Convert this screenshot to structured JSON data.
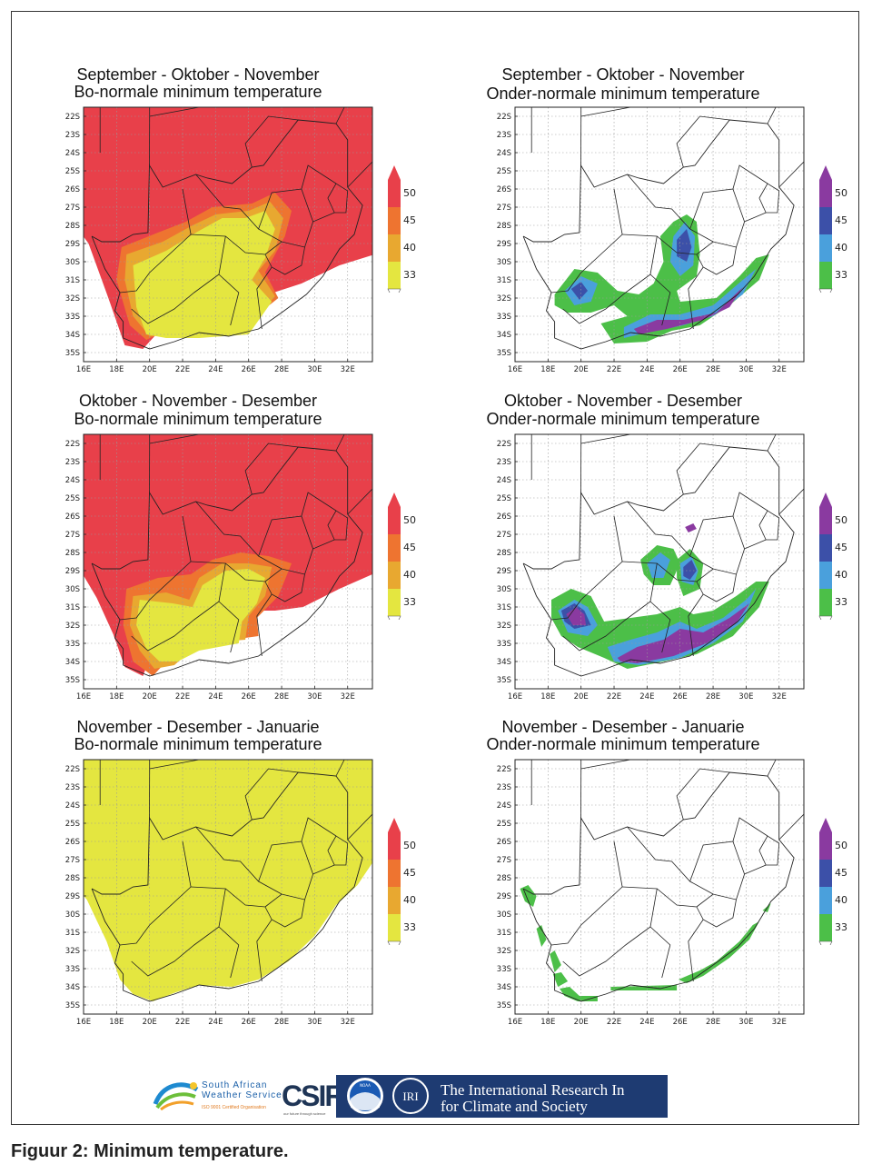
{
  "figure_caption": "Figuur 2: Minimum temperature.",
  "logos": {
    "saws_line1": "South African",
    "saws_line2": "Weather Service",
    "saws_cert": "ISO 9001 Certified Organisation",
    "csir": "CSIR",
    "csir_sub": "our future through science",
    "noaa": "NOAA",
    "iri": "IRI",
    "iri_line1": "The International Research In",
    "iri_line2": "for Climate and Society"
  },
  "chart_data": [
    {
      "type": "heatmap",
      "title": "September - Oktober - November",
      "subtitle": "Bo-normale minimum temperature",
      "category": "above",
      "palette": "warm",
      "fill": "above1",
      "x_ticks": [
        "16E",
        "18E",
        "20E",
        "22E",
        "24E",
        "26E",
        "28E",
        "30E",
        "32E"
      ],
      "y_ticks": [
        "22S",
        "23S",
        "24S",
        "25S",
        "26S",
        "27S",
        "28S",
        "29S",
        "30S",
        "31S",
        "32S",
        "33S",
        "34S",
        "35S"
      ],
      "xlim": [
        16,
        33.5
      ],
      "ylim": [
        -35.5,
        -21.5
      ],
      "legend": [
        "33",
        "40",
        "45",
        "50"
      ],
      "legend_colors": [
        "#e4e640",
        "#e8a830",
        "#ee7430",
        "#e8404a"
      ]
    },
    {
      "type": "heatmap",
      "title": "September - Oktober - November",
      "subtitle": "Onder-normale minimum temperature",
      "category": "below",
      "palette": "cool",
      "fill": "below1",
      "x_ticks": [
        "16E",
        "18E",
        "20E",
        "22E",
        "24E",
        "26E",
        "28E",
        "30E",
        "32E"
      ],
      "y_ticks": [
        "22S",
        "23S",
        "24S",
        "25S",
        "26S",
        "27S",
        "28S",
        "29S",
        "30S",
        "31S",
        "32S",
        "33S",
        "34S",
        "35S"
      ],
      "xlim": [
        16,
        33.5
      ],
      "ylim": [
        -35.5,
        -21.5
      ],
      "legend": [
        "33",
        "40",
        "45",
        "50"
      ],
      "legend_colors": [
        "#4cbf48",
        "#4aa0dc",
        "#3c50a8",
        "#8a3aa0"
      ]
    },
    {
      "type": "heatmap",
      "title": "Oktober - November - Desember",
      "subtitle": "Bo-normale minimum temperature",
      "category": "above",
      "palette": "warm",
      "fill": "above2",
      "x_ticks": [
        "16E",
        "18E",
        "20E",
        "22E",
        "24E",
        "26E",
        "28E",
        "30E",
        "32E"
      ],
      "y_ticks": [
        "22S",
        "23S",
        "24S",
        "25S",
        "26S",
        "27S",
        "28S",
        "29S",
        "30S",
        "31S",
        "32S",
        "33S",
        "34S",
        "35S"
      ],
      "xlim": [
        16,
        33.5
      ],
      "ylim": [
        -35.5,
        -21.5
      ],
      "legend": [
        "33",
        "40",
        "45",
        "50"
      ],
      "legend_colors": [
        "#e4e640",
        "#e8a830",
        "#ee7430",
        "#e8404a"
      ]
    },
    {
      "type": "heatmap",
      "title": "Oktober - November - Desember",
      "subtitle": "Onder-normale minimum temperature",
      "category": "below",
      "palette": "cool",
      "fill": "below2",
      "x_ticks": [
        "16E",
        "18E",
        "20E",
        "22E",
        "24E",
        "26E",
        "28E",
        "30E",
        "32E"
      ],
      "y_ticks": [
        "22S",
        "23S",
        "24S",
        "25S",
        "26S",
        "27S",
        "28S",
        "29S",
        "30S",
        "31S",
        "32S",
        "33S",
        "34S",
        "35S"
      ],
      "xlim": [
        16,
        33.5
      ],
      "ylim": [
        -35.5,
        -21.5
      ],
      "legend": [
        "33",
        "40",
        "45",
        "50"
      ],
      "legend_colors": [
        "#4cbf48",
        "#4aa0dc",
        "#3c50a8",
        "#8a3aa0"
      ]
    },
    {
      "type": "heatmap",
      "title": "November - Desember - Januarie",
      "subtitle": "Bo-normale minimum temperature",
      "category": "above",
      "palette": "warm",
      "fill": "above3",
      "x_ticks": [
        "16E",
        "18E",
        "20E",
        "22E",
        "24E",
        "26E",
        "28E",
        "30E",
        "32E"
      ],
      "y_ticks": [
        "22S",
        "23S",
        "24S",
        "25S",
        "26S",
        "27S",
        "28S",
        "29S",
        "30S",
        "31S",
        "32S",
        "33S",
        "34S",
        "35S"
      ],
      "xlim": [
        16,
        33.5
      ],
      "ylim": [
        -35.5,
        -21.5
      ],
      "legend": [
        "33",
        "40",
        "45",
        "50"
      ],
      "legend_colors": [
        "#e4e640",
        "#e8a830",
        "#ee7430",
        "#e8404a"
      ]
    },
    {
      "type": "heatmap",
      "title": "November - Desember - Januarie",
      "subtitle": "Onder-normale minimum temperature",
      "category": "below",
      "palette": "cool",
      "fill": "below3",
      "x_ticks": [
        "16E",
        "18E",
        "20E",
        "22E",
        "24E",
        "26E",
        "28E",
        "30E",
        "32E"
      ],
      "y_ticks": [
        "22S",
        "23S",
        "24S",
        "25S",
        "26S",
        "27S",
        "28S",
        "29S",
        "30S",
        "31S",
        "32S",
        "33S",
        "34S",
        "35S"
      ],
      "xlim": [
        16,
        33.5
      ],
      "ylim": [
        -35.5,
        -21.5
      ],
      "legend": [
        "33",
        "40",
        "45",
        "50"
      ],
      "legend_colors": [
        "#4cbf48",
        "#4aa0dc",
        "#3c50a8",
        "#8a3aa0"
      ]
    }
  ]
}
